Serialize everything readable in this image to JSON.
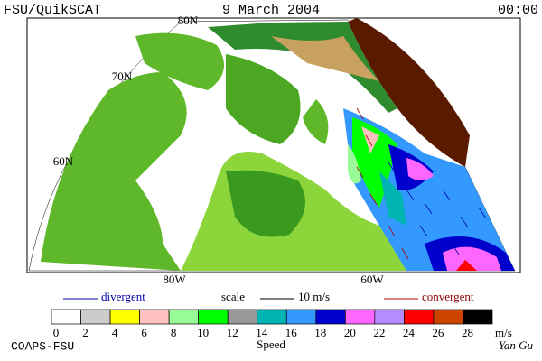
{
  "header": {
    "left": "FSU/QuikSCAT",
    "center": "9 March 2004",
    "right": "00:00"
  },
  "map": {
    "lat_labels": [
      "80N",
      "70N",
      "60N"
    ],
    "lon_labels": [
      "80W",
      "60W"
    ]
  },
  "legend": {
    "divergent": "divergent",
    "scale": "scale",
    "scale_value": "10 m/s",
    "convergent": "convergent"
  },
  "colorbar": {
    "ticks": [
      0,
      2,
      4,
      6,
      8,
      10,
      12,
      14,
      16,
      18,
      20,
      22,
      24,
      26,
      28
    ],
    "unit": "m/s",
    "label": "Speed",
    "colors": [
      "#ffffff",
      "#cccccc",
      "#ffff00",
      "#ffc0c0",
      "#98fb98",
      "#00ff00",
      "#999999",
      "#00b4b4",
      "#3399ff",
      "#0000cc",
      "#ff66ff",
      "#b38cff",
      "#ff0000",
      "#cc4400",
      "#000000"
    ]
  },
  "footer": {
    "left": "COAPS-FSU",
    "right": "Yan Gu"
  }
}
